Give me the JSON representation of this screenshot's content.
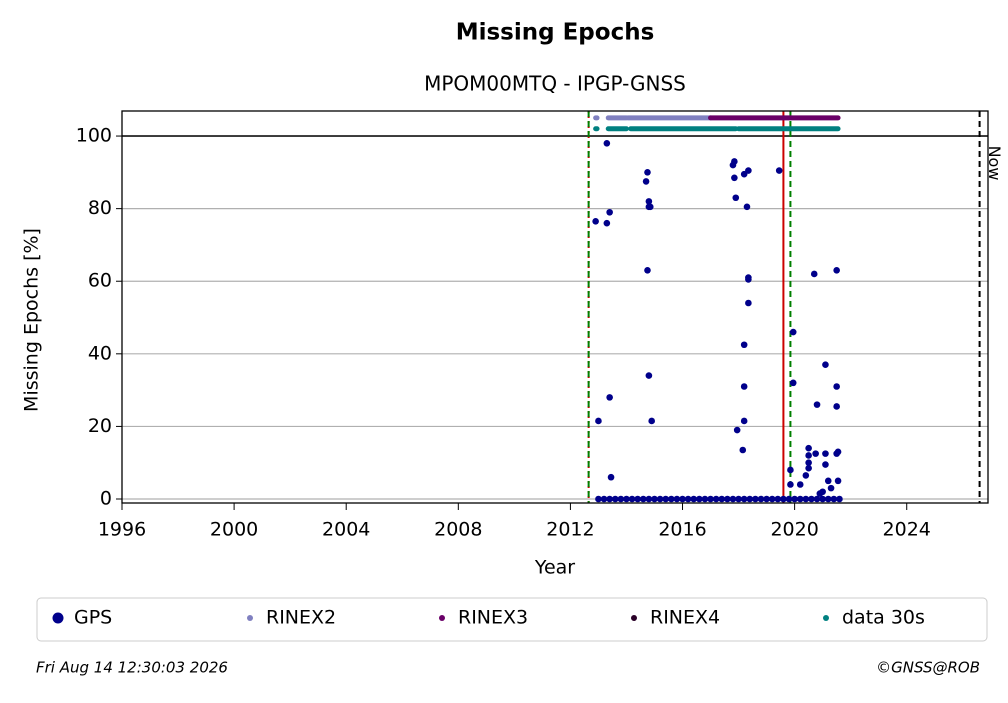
{
  "chart_data": {
    "type": "scatter",
    "title": "Missing Epochs",
    "subtitle": "MPOM00MTQ - IPGP-GNSS",
    "xlabel": "Year",
    "ylabel": "Missing Epochs [%]",
    "xlim": [
      1996,
      2026.9
    ],
    "ylim": [
      -1.1,
      106.9
    ],
    "xticks": [
      1996,
      2000,
      2004,
      2008,
      2012,
      2016,
      2020,
      2024
    ],
    "yticks": [
      0,
      20,
      40,
      60,
      80,
      100
    ],
    "grid": true,
    "hline": 100,
    "vlines": [
      {
        "x": 2012.65,
        "color": "#cc0000",
        "style": "dotted"
      },
      {
        "x": 2012.65,
        "color": "#008000",
        "style": "dashed"
      },
      {
        "x": 2019.6,
        "color": "#cc0000",
        "style": "solid"
      },
      {
        "x": 2019.85,
        "color": "#008000",
        "style": "dashed"
      },
      {
        "x": 2026.6,
        "color": "#000000",
        "style": "dashed",
        "label": "Now"
      }
    ],
    "legend": "bottom",
    "series": [
      {
        "name": "GPS",
        "color": "#00008b",
        "x": [
          2013.0,
          2013.2,
          2013.4,
          2013.6,
          2013.8,
          2014.0,
          2014.2,
          2014.4,
          2014.6,
          2014.8,
          2015.0,
          2015.2,
          2015.4,
          2015.6,
          2015.8,
          2016.0,
          2016.2,
          2016.4,
          2016.6,
          2016.8,
          2017.0,
          2017.2,
          2017.4,
          2017.6,
          2017.8,
          2018.0,
          2018.2,
          2018.4,
          2018.6,
          2018.8,
          2019.0,
          2019.2,
          2019.4,
          2019.6,
          2019.8,
          2020.0,
          2020.2,
          2020.4,
          2020.6,
          2020.8,
          2021.0,
          2021.2,
          2021.4,
          2021.6,
          2012.9,
          2013.0,
          2013.3,
          2013.3,
          2013.4,
          2013.4,
          2013.45,
          2014.7,
          2014.75,
          2014.8,
          2014.8,
          2014.85,
          2014.75,
          2014.8,
          2014.9,
          2017.8,
          2017.85,
          2017.85,
          2017.9,
          2017.95,
          2018.2,
          2018.35,
          2018.3,
          2018.35,
          2018.35,
          2018.35,
          2018.2,
          2018.2,
          2018.2,
          2018.15,
          2019.45,
          2019.85,
          2019.85,
          2019.95,
          2019.95,
          2020.2,
          2020.4,
          2020.5,
          2020.5,
          2020.5,
          2020.5,
          2020.7,
          2020.8,
          2020.75,
          2021.1,
          2021.1,
          2021.1,
          2021.2,
          2021.5,
          2021.5,
          2021.5,
          2021.5,
          2021.55,
          2021.55,
          2021.0,
          2021.3,
          2020.9
        ],
        "values": [
          0,
          0,
          0,
          0,
          0,
          0,
          0,
          0,
          0,
          0,
          0,
          0,
          0,
          0,
          0,
          0,
          0,
          0,
          0,
          0,
          0,
          0,
          0,
          0,
          0,
          0,
          0,
          0,
          0,
          0,
          0,
          0,
          0,
          0,
          0,
          0,
          0,
          0,
          0,
          0,
          0,
          0,
          0,
          0,
          76.5,
          21.5,
          98,
          76,
          79,
          28,
          6,
          87.5,
          90,
          82,
          80.5,
          80.5,
          63,
          34,
          21.5,
          92,
          93,
          88.5,
          83,
          19,
          89.5,
          90.5,
          80.5,
          61,
          60.5,
          54,
          42.5,
          31,
          21.5,
          13.5,
          90.5,
          8,
          4,
          46,
          32,
          4,
          6.5,
          14,
          12,
          10,
          8.5,
          62,
          26,
          12.5,
          37,
          12.5,
          9.5,
          5,
          63,
          31,
          25.5,
          12.5,
          13,
          5,
          2,
          3,
          1.5
        ]
      },
      {
        "name": "RINEX2",
        "color": "#8080c0",
        "y": 105,
        "ranges": [
          [
            2012.9,
            2012.95
          ],
          [
            2013.35,
            2014.0
          ],
          [
            2014.05,
            2017.0
          ]
        ]
      },
      {
        "name": "RINEX3",
        "color": "#6a0068",
        "y": 105,
        "ranges": [
          [
            2017.0,
            2021.55
          ]
        ]
      },
      {
        "name": "RINEX4",
        "color": "#2a0028",
        "y": 105,
        "ranges": []
      },
      {
        "name": "data 30s",
        "color": "#008080",
        "y": 102,
        "ranges": [
          [
            2012.9,
            2012.95
          ],
          [
            2013.35,
            2014.0
          ],
          [
            2014.15,
            2017.9
          ],
          [
            2018.0,
            2021.55
          ]
        ]
      }
    ],
    "footer_left": "Fri Aug 14 12:30:03 2026",
    "footer_right": "©GNSS@ROB"
  }
}
